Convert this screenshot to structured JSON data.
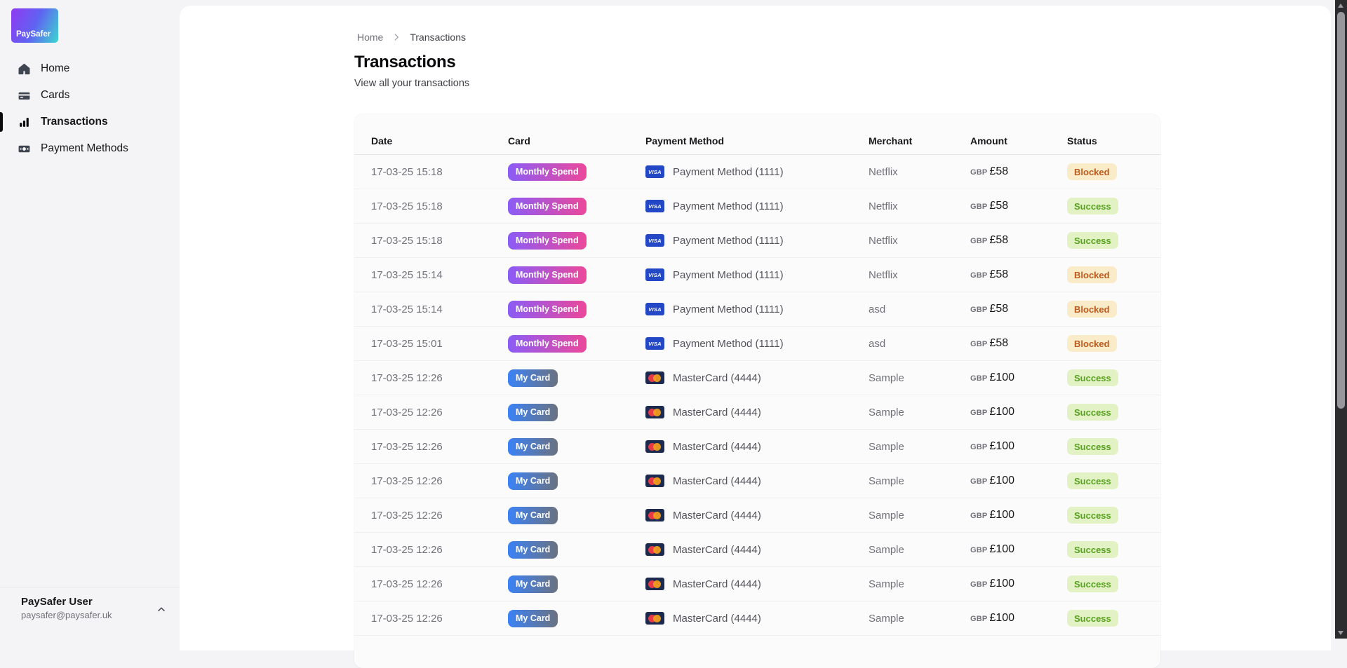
{
  "brand": {
    "logo_text": "PaySafer"
  },
  "sidebar": {
    "items": [
      {
        "label": "Home",
        "active": false
      },
      {
        "label": "Cards",
        "active": false
      },
      {
        "label": "Transactions",
        "active": true
      },
      {
        "label": "Payment Methods",
        "active": false
      }
    ],
    "user": {
      "name": "PaySafer User",
      "email": "paysafer@paysafer.uk"
    }
  },
  "breadcrumb": {
    "home": "Home",
    "current": "Transactions"
  },
  "page": {
    "title": "Transactions",
    "subtitle": "View all your transactions"
  },
  "table": {
    "columns": [
      "Date",
      "Card",
      "Payment Method",
      "Merchant",
      "Amount",
      "Status"
    ],
    "rows": [
      {
        "date": "17-03-25 15:18",
        "card_label": "Monthly Spend",
        "card_variant": "monthly",
        "network": "visa",
        "payment_method": "Payment Method (1111)",
        "merchant": "Netflix",
        "currency": "GBP",
        "amount": "£58",
        "status": "Blocked"
      },
      {
        "date": "17-03-25 15:18",
        "card_label": "Monthly Spend",
        "card_variant": "monthly",
        "network": "visa",
        "payment_method": "Payment Method (1111)",
        "merchant": "Netflix",
        "currency": "GBP",
        "amount": "£58",
        "status": "Success"
      },
      {
        "date": "17-03-25 15:18",
        "card_label": "Monthly Spend",
        "card_variant": "monthly",
        "network": "visa",
        "payment_method": "Payment Method (1111)",
        "merchant": "Netflix",
        "currency": "GBP",
        "amount": "£58",
        "status": "Success"
      },
      {
        "date": "17-03-25 15:14",
        "card_label": "Monthly Spend",
        "card_variant": "monthly",
        "network": "visa",
        "payment_method": "Payment Method (1111)",
        "merchant": "Netflix",
        "currency": "GBP",
        "amount": "£58",
        "status": "Blocked"
      },
      {
        "date": "17-03-25 15:14",
        "card_label": "Monthly Spend",
        "card_variant": "monthly",
        "network": "visa",
        "payment_method": "Payment Method (1111)",
        "merchant": "asd",
        "currency": "GBP",
        "amount": "£58",
        "status": "Blocked"
      },
      {
        "date": "17-03-25 15:01",
        "card_label": "Monthly Spend",
        "card_variant": "monthly",
        "network": "visa",
        "payment_method": "Payment Method (1111)",
        "merchant": "asd",
        "currency": "GBP",
        "amount": "£58",
        "status": "Blocked"
      },
      {
        "date": "17-03-25 12:26",
        "card_label": "My Card",
        "card_variant": "mycard",
        "network": "mastercard",
        "payment_method": "MasterCard (4444)",
        "merchant": "Sample",
        "currency": "GBP",
        "amount": "£100",
        "status": "Success"
      },
      {
        "date": "17-03-25 12:26",
        "card_label": "My Card",
        "card_variant": "mycard",
        "network": "mastercard",
        "payment_method": "MasterCard (4444)",
        "merchant": "Sample",
        "currency": "GBP",
        "amount": "£100",
        "status": "Success"
      },
      {
        "date": "17-03-25 12:26",
        "card_label": "My Card",
        "card_variant": "mycard",
        "network": "mastercard",
        "payment_method": "MasterCard (4444)",
        "merchant": "Sample",
        "currency": "GBP",
        "amount": "£100",
        "status": "Success"
      },
      {
        "date": "17-03-25 12:26",
        "card_label": "My Card",
        "card_variant": "mycard",
        "network": "mastercard",
        "payment_method": "MasterCard (4444)",
        "merchant": "Sample",
        "currency": "GBP",
        "amount": "£100",
        "status": "Success"
      },
      {
        "date": "17-03-25 12:26",
        "card_label": "My Card",
        "card_variant": "mycard",
        "network": "mastercard",
        "payment_method": "MasterCard (4444)",
        "merchant": "Sample",
        "currency": "GBP",
        "amount": "£100",
        "status": "Success"
      },
      {
        "date": "17-03-25 12:26",
        "card_label": "My Card",
        "card_variant": "mycard",
        "network": "mastercard",
        "payment_method": "MasterCard (4444)",
        "merchant": "Sample",
        "currency": "GBP",
        "amount": "£100",
        "status": "Success"
      },
      {
        "date": "17-03-25 12:26",
        "card_label": "My Card",
        "card_variant": "mycard",
        "network": "mastercard",
        "payment_method": "MasterCard (4444)",
        "merchant": "Sample",
        "currency": "GBP",
        "amount": "£100",
        "status": "Success"
      },
      {
        "date": "17-03-25 12:26",
        "card_label": "My Card",
        "card_variant": "mycard",
        "network": "mastercard",
        "payment_method": "MasterCard (4444)",
        "merchant": "Sample",
        "currency": "GBP",
        "amount": "£100",
        "status": "Success"
      }
    ]
  },
  "icons": {
    "visa_label": "VISA"
  },
  "colors": {
    "monthly_spend_gradient": [
      "#8b5cf6",
      "#ec4899"
    ],
    "my_card_gradient": [
      "#3b82f6",
      "#6b7280"
    ],
    "status_blocked_bg": "#fbecc9",
    "status_blocked_text": "#bf5a1e",
    "status_success_bg": "#e2f2c5",
    "status_success_text": "#58a120",
    "visa_bg": "#2447c5",
    "mastercard_bg": "#1b2a4e",
    "logo_gradient": [
      "#8b3ef2",
      "#3bd8cf"
    ]
  }
}
